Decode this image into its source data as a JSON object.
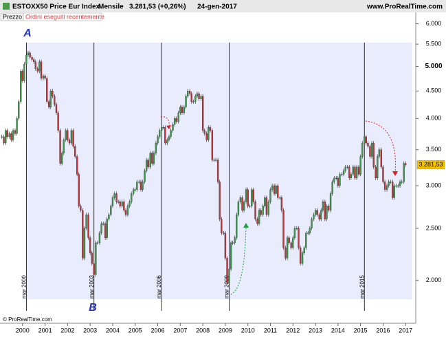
{
  "chart_data": {
    "type": "candlestick",
    "title": "ESTOXX50 Price Eur Index",
    "period": "Mensile",
    "header_price": "3.281,53 (+0,26%)",
    "date": "24-gen-2017",
    "site": "www.ProRealTime.com",
    "copyright": "© ProRealTime.com",
    "tab_price": "Prezzo",
    "tab_orders": "Ordini eseguiti recentemente",
    "log_scale": true,
    "up_color": "#3a9a4a",
    "down_color": "#c0343a",
    "xlim": [
      1999,
      2017.45
    ],
    "xticks": [
      2000,
      2001,
      2002,
      2003,
      2004,
      2005,
      2006,
      2007,
      2008,
      2009,
      2010,
      2011,
      2012,
      2013,
      2014,
      2015,
      2016,
      2017
    ],
    "ylim": [
      1740,
      6300
    ],
    "yticks": [
      {
        "value": 6000,
        "label": "6.000"
      },
      {
        "value": 5500,
        "label": "5.500"
      },
      {
        "value": 5000,
        "label": "5.000"
      },
      {
        "value": 4500,
        "label": "4.500"
      },
      {
        "value": 4000,
        "label": "4.000"
      },
      {
        "value": 3500,
        "label": "3.500"
      },
      {
        "value": 3000,
        "label": "3.000"
      },
      {
        "value": 2500,
        "label": "2.500"
      },
      {
        "value": 2000,
        "label": "2.000"
      }
    ],
    "last_price": {
      "value": 3281.53,
      "label": "3.281,53"
    },
    "vlines": [
      {
        "value": 2000.17,
        "label": "mar 2000"
      },
      {
        "value": 2003.17,
        "label": "mar 2003"
      },
      {
        "value": 2006.17,
        "label": "mar 2006"
      },
      {
        "value": 2009.17,
        "label": "mar 2009"
      },
      {
        "value": 2015.17,
        "label": "mar 2015"
      }
    ],
    "annotations": [
      "A",
      "B"
    ],
    "x": [
      1999.08,
      1999.17,
      1999.25,
      1999.33,
      1999.42,
      1999.5,
      1999.58,
      1999.67,
      1999.75,
      1999.83,
      1999.92,
      2000,
      2000.08,
      2000.17,
      2000.25,
      2000.33,
      2000.42,
      2000.5,
      2000.58,
      2000.67,
      2000.75,
      2000.83,
      2000.92,
      2001,
      2001.08,
      2001.17,
      2001.25,
      2001.33,
      2001.42,
      2001.5,
      2001.58,
      2001.67,
      2001.75,
      2001.83,
      2001.92,
      2002,
      2002.08,
      2002.17,
      2002.25,
      2002.33,
      2002.42,
      2002.5,
      2002.58,
      2002.67,
      2002.75,
      2002.83,
      2002.92,
      2003,
      2003.08,
      2003.17,
      2003.25,
      2003.33,
      2003.42,
      2003.5,
      2003.58,
      2003.67,
      2003.75,
      2003.83,
      2003.92,
      2004,
      2004.08,
      2004.17,
      2004.25,
      2004.33,
      2004.42,
      2004.5,
      2004.58,
      2004.67,
      2004.75,
      2004.83,
      2004.92,
      2005,
      2005.08,
      2005.17,
      2005.25,
      2005.33,
      2005.42,
      2005.5,
      2005.58,
      2005.67,
      2005.75,
      2005.83,
      2005.92,
      2006,
      2006.08,
      2006.17,
      2006.25,
      2006.33,
      2006.42,
      2006.5,
      2006.58,
      2006.67,
      2006.75,
      2006.83,
      2006.92,
      2007,
      2007.08,
      2007.17,
      2007.25,
      2007.33,
      2007.42,
      2007.5,
      2007.58,
      2007.67,
      2007.75,
      2007.83,
      2007.92,
      2008,
      2008.08,
      2008.17,
      2008.25,
      2008.33,
      2008.42,
      2008.5,
      2008.58,
      2008.67,
      2008.75,
      2008.83,
      2008.92,
      2009,
      2009.08,
      2009.17,
      2009.25,
      2009.33,
      2009.42,
      2009.5,
      2009.58,
      2009.67,
      2009.75,
      2009.83,
      2009.92,
      2010,
      2010.08,
      2010.17,
      2010.25,
      2010.33,
      2010.42,
      2010.5,
      2010.58,
      2010.67,
      2010.75,
      2010.83,
      2010.92,
      2011,
      2011.08,
      2011.17,
      2011.25,
      2011.33,
      2011.42,
      2011.5,
      2011.58,
      2011.67,
      2011.75,
      2011.83,
      2011.92,
      2012,
      2012.08,
      2012.17,
      2012.25,
      2012.33,
      2012.42,
      2012.5,
      2012.58,
      2012.67,
      2012.75,
      2012.83,
      2012.92,
      2013,
      2013.08,
      2013.17,
      2013.25,
      2013.33,
      2013.42,
      2013.5,
      2013.58,
      2013.67,
      2013.75,
      2013.83,
      2013.92,
      2014,
      2014.08,
      2014.17,
      2014.25,
      2014.33,
      2014.42,
      2014.5,
      2014.58,
      2014.67,
      2014.75,
      2014.83,
      2014.92,
      2015,
      2015.08,
      2015.17,
      2015.25,
      2015.33,
      2015.42,
      2015.5,
      2015.58,
      2015.67,
      2015.75,
      2015.83,
      2015.92,
      2016,
      2016.08,
      2016.17,
      2016.25,
      2016.33,
      2016.42,
      2016.5,
      2016.58,
      2016.67,
      2016.75,
      2016.83,
      2016.92,
      2017
    ],
    "series": [
      {
        "name": "ESTOXX50",
        "values": [
          3700,
          3600,
          3800,
          3700,
          3750,
          3650,
          3800,
          3750,
          4000,
          4300,
          4900,
          4700,
          5050,
          5250,
          5300,
          5200,
          5150,
          5100,
          4950,
          4900,
          5100,
          4750,
          4800,
          4750,
          4300,
          4200,
          4500,
          4400,
          4250,
          4100,
          3800,
          3300,
          3450,
          3650,
          3800,
          3650,
          3600,
          3800,
          3550,
          3400,
          3150,
          2750,
          2700,
          2200,
          2500,
          2650,
          2400,
          2250,
          2150,
          2050,
          2350,
          2350,
          2450,
          2550,
          2550,
          2400,
          2600,
          2650,
          2750,
          2850,
          2900,
          2800,
          2800,
          2750,
          2800,
          2700,
          2650,
          2750,
          2800,
          2900,
          2950,
          2950,
          3050,
          3050,
          2950,
          3050,
          3200,
          3350,
          3250,
          3450,
          3300,
          3450,
          3600,
          3700,
          3800,
          3850,
          3850,
          3600,
          3650,
          3700,
          3800,
          3900,
          4000,
          3950,
          4100,
          4200,
          4100,
          4200,
          4400,
          4500,
          4450,
          4300,
          4300,
          4400,
          4450,
          4350,
          4400,
          3800,
          3750,
          3650,
          3850,
          3800,
          3350,
          3350,
          3350,
          3050,
          2600,
          2450,
          2450,
          2200,
          1980,
          2100,
          2350,
          2350,
          2400,
          2650,
          2800,
          2850,
          2700,
          2800,
          2950,
          2750,
          2750,
          2950,
          2800,
          2600,
          2550,
          2700,
          2650,
          2750,
          2850,
          2650,
          2800,
          2950,
          3000,
          2900,
          3000,
          2850,
          2850,
          2700,
          2300,
          2200,
          2400,
          2350,
          2300,
          2400,
          2500,
          2500,
          2300,
          2150,
          2250,
          2300,
          2450,
          2450,
          2500,
          2600,
          2650,
          2700,
          2650,
          2600,
          2700,
          2800,
          2600,
          2750,
          2700,
          2900,
          3050,
          3100,
          3100,
          3000,
          3150,
          3150,
          3200,
          3250,
          3250,
          3100,
          3150,
          3250,
          3100,
          3250,
          3150,
          3400,
          3600,
          3700,
          3600,
          3550,
          3400,
          3600,
          3250,
          3100,
          3400,
          3500,
          3250,
          3050,
          2950,
          3000,
          3050,
          3050,
          2850,
          3000,
          3000,
          3000,
          3050,
          3050,
          3300,
          3281.53
        ]
      }
    ]
  }
}
